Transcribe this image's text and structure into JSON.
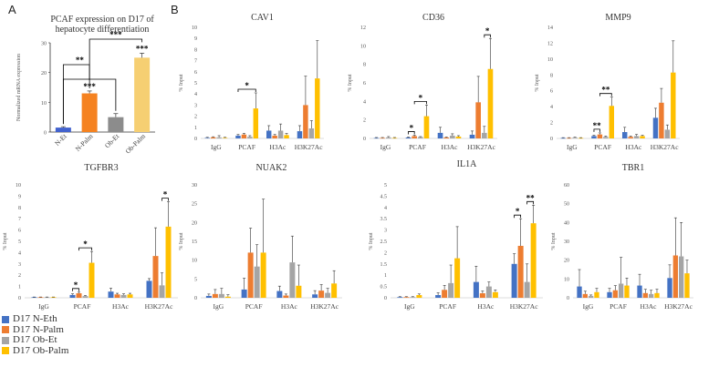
{
  "panel_labels": [
    "A",
    "B"
  ],
  "colors": {
    "N-Eth": "#4472C4",
    "N-Palm": "#ED7D31",
    "Ob-Et": "#A5A5A5",
    "Ob-Palm": "#FFC000",
    "panelA": [
      "#4262CE",
      "#F58220",
      "#8C8C8C",
      "#F6CF72"
    ]
  },
  "legend": [
    {
      "label": "D17 N-Eth",
      "color": "#4472C4"
    },
    {
      "label": "D17 N-Palm",
      "color": "#ED7D31"
    },
    {
      "label": "D17 Ob-Et",
      "color": "#A5A5A5"
    },
    {
      "label": "D17 Ob-Palm",
      "color": "#FFC000"
    }
  ],
  "chart_data": [
    {
      "id": "A",
      "type": "bar",
      "title": "PCAF expression on D17 of hepatocyte differentiation",
      "title_lines": [
        "PCAF expression on D17 of",
        "hepatocyte differentiation"
      ],
      "ylabel": "Normalized mRNA expression",
      "ylim": [
        0,
        30
      ],
      "yticks": [
        0,
        10,
        20,
        30
      ],
      "categories": [
        "N-Et",
        "N-Palm",
        "Ob-Et",
        "Ob-Palm"
      ],
      "values": [
        1.5,
        13,
        5,
        25
      ],
      "errors": [
        0.3,
        0.8,
        1.2,
        1.5
      ],
      "bar_labels": [
        "",
        "***",
        "",
        "***"
      ],
      "brackets": [
        {
          "from": 0,
          "to": 1,
          "label": "**"
        },
        {
          "from": 0,
          "to": 2,
          "label": ""
        },
        {
          "from": 1,
          "to": 3,
          "label": "***"
        }
      ]
    },
    {
      "id": "CAV1",
      "type": "bar",
      "title": "CAV1",
      "ylabel": "% Input",
      "ylim": [
        0,
        10
      ],
      "yticks": [
        0,
        1,
        2,
        3,
        4,
        5,
        6,
        7,
        8,
        9,
        10
      ],
      "categories": [
        "IgG",
        "PCAF",
        "H3Ac",
        "H3K27Ac"
      ],
      "series": [
        {
          "name": "D17 N-Eth",
          "values": [
            0.05,
            0.25,
            0.7,
            0.65
          ],
          "errors": [
            0.05,
            0.1,
            0.45,
            0.5
          ]
        },
        {
          "name": "D17 N-Palm",
          "values": [
            0.1,
            0.35,
            0.25,
            3.0
          ],
          "errors": [
            0.05,
            0.1,
            0.1,
            2.6
          ]
        },
        {
          "name": "D17 Ob-Et",
          "values": [
            0.1,
            0.15,
            0.7,
            0.9
          ],
          "errors": [
            0.15,
            0.1,
            0.6,
            0.7
          ]
        },
        {
          "name": "D17 Ob-Palm",
          "values": [
            0.05,
            2.7,
            0.3,
            5.4
          ],
          "errors": [
            0.05,
            1.4,
            0.15,
            3.4
          ]
        }
      ],
      "sig": [
        {
          "cat": 1,
          "from": 0,
          "to": 3,
          "label": "*"
        }
      ]
    },
    {
      "id": "CD36",
      "type": "bar",
      "title": "CD36",
      "ylabel": "% Input",
      "ylim": [
        0,
        12
      ],
      "yticks": [
        0,
        2,
        4,
        6,
        8,
        10,
        12
      ],
      "categories": [
        "IgG",
        "PCAF",
        "H3Ac",
        "H3K27Ac"
      ],
      "series": [
        {
          "name": "D17 N-Eth",
          "values": [
            0.05,
            0.1,
            0.6,
            0.4
          ],
          "errors": [
            0.05,
            0.05,
            0.6,
            0.4
          ]
        },
        {
          "name": "D17 N-Palm",
          "values": [
            0.05,
            0.25,
            0.1,
            3.9
          ],
          "errors": [
            0.05,
            0.1,
            0.05,
            2.8
          ]
        },
        {
          "name": "D17 Ob-Et",
          "values": [
            0.1,
            0.15,
            0.3,
            0.6
          ],
          "errors": [
            0.1,
            0.05,
            0.2,
            0.7
          ]
        },
        {
          "name": "D17 Ob-Palm",
          "values": [
            0.05,
            2.4,
            0.2,
            7.5
          ],
          "errors": [
            0.05,
            1.2,
            0.1,
            3.3
          ]
        }
      ],
      "sig": [
        {
          "cat": 1,
          "from": 0,
          "to": 1,
          "label": "*"
        },
        {
          "cat": 1,
          "from": 1,
          "to": 3,
          "label": "*"
        },
        {
          "cat": 3,
          "from": 2,
          "to": 3,
          "label": "*"
        }
      ]
    },
    {
      "id": "MMP9",
      "type": "bar",
      "title": "MMP9",
      "ylabel": "% Input",
      "ylim": [
        0,
        14
      ],
      "yticks": [
        0,
        2,
        4,
        6,
        8,
        10,
        12,
        14
      ],
      "categories": [
        "IgG",
        "PCAF",
        "H3Ac",
        "H3K27Ac"
      ],
      "series": [
        {
          "name": "D17 N-Eth",
          "values": [
            0.05,
            0.3,
            0.8,
            2.6
          ],
          "errors": [
            0.05,
            0.1,
            0.6,
            1.2
          ]
        },
        {
          "name": "D17 N-Palm",
          "values": [
            0.05,
            0.5,
            0.2,
            4.5
          ],
          "errors": [
            0.05,
            0.2,
            0.1,
            1.8
          ]
        },
        {
          "name": "D17 Ob-Et",
          "values": [
            0.1,
            0.2,
            0.3,
            1.1
          ],
          "errors": [
            0.05,
            0.1,
            0.2,
            0.6
          ]
        },
        {
          "name": "D17 Ob-Palm",
          "values": [
            0.05,
            4.1,
            0.3,
            8.3
          ],
          "errors": [
            0.05,
            1.1,
            0.1,
            4.0
          ]
        }
      ],
      "sig": [
        {
          "cat": 1,
          "from": 0,
          "to": 1,
          "label": "**"
        },
        {
          "cat": 1,
          "from": 1,
          "to": 3,
          "label": "**"
        }
      ]
    },
    {
      "id": "TGFBR3",
      "type": "bar",
      "title": "TGFBR3",
      "ylabel": "% Input",
      "ylim": [
        0,
        10
      ],
      "yticks": [
        0,
        1,
        2,
        3,
        4,
        5,
        6,
        7,
        8,
        9,
        10
      ],
      "categories": [
        "IgG",
        "PCAF",
        "H3Ac",
        "H3K27Ac"
      ],
      "series": [
        {
          "name": "D17 N-Eth",
          "values": [
            0.05,
            0.25,
            0.55,
            1.5
          ],
          "errors": [
            0.02,
            0.1,
            0.3,
            0.2
          ]
        },
        {
          "name": "D17 N-Palm",
          "values": [
            0.05,
            0.4,
            0.3,
            3.7
          ],
          "errors": [
            0.02,
            0.1,
            0.1,
            2.5
          ]
        },
        {
          "name": "D17 Ob-Et",
          "values": [
            0.05,
            0.15,
            0.25,
            1.1
          ],
          "errors": [
            0.02,
            0.05,
            0.1,
            1.1
          ]
        },
        {
          "name": "D17 Ob-Palm",
          "values": [
            0.05,
            3.1,
            0.3,
            6.3
          ],
          "errors": [
            0.02,
            1.0,
            0.1,
            2.2
          ]
        }
      ],
      "sig": [
        {
          "cat": 1,
          "from": 0,
          "to": 1,
          "label": "*"
        },
        {
          "cat": 1,
          "from": 1,
          "to": 3,
          "label": "*"
        },
        {
          "cat": 3,
          "from": 2,
          "to": 3,
          "label": "*"
        }
      ]
    },
    {
      "id": "NUAK2",
      "type": "bar",
      "title": "NUAK2",
      "ylabel": "% Input",
      "ylim": [
        0,
        30
      ],
      "yticks": [
        0,
        5,
        10,
        15,
        20,
        25,
        30
      ],
      "categories": [
        "IgG",
        "PCAF",
        "H3Ac",
        "H3K27Ac"
      ],
      "series": [
        {
          "name": "D17 N-Eth",
          "values": [
            0.5,
            2.2,
            1.8,
            0.9
          ],
          "errors": [
            0.5,
            3.0,
            1.3,
            1.0
          ]
        },
        {
          "name": "D17 N-Palm",
          "values": [
            1.0,
            12.0,
            0.6,
            1.9
          ],
          "errors": [
            1.2,
            6.5,
            0.4,
            1.6
          ]
        },
        {
          "name": "D17 Ob-Et",
          "values": [
            1.0,
            8.3,
            9.4,
            1.3
          ],
          "errors": [
            1.5,
            5.8,
            7.0,
            1.2
          ]
        },
        {
          "name": "D17 Ob-Palm",
          "values": [
            0.3,
            12.0,
            3.2,
            3.8
          ],
          "errors": [
            0.5,
            14.2,
            5.5,
            3.4
          ]
        }
      ],
      "sig": []
    },
    {
      "id": "IL1A",
      "type": "bar",
      "title": "IL1A",
      "ylabel": "% Input",
      "ylim": [
        0,
        5
      ],
      "yticks": [
        0,
        0.5,
        1,
        1.5,
        2,
        2.5,
        3,
        3.5,
        4,
        4.5,
        5
      ],
      "categories": [
        "IgG",
        "PCAF",
        "H3Ac",
        "H3K27Ac"
      ],
      "series": [
        {
          "name": "D17 N-Eth",
          "values": [
            0.03,
            0.12,
            0.7,
            1.5
          ],
          "errors": [
            0.02,
            0.1,
            0.7,
            0.45
          ]
        },
        {
          "name": "D17 N-Palm",
          "values": [
            0.03,
            0.35,
            0.2,
            2.3
          ],
          "errors": [
            0.02,
            0.2,
            0.1,
            1.2
          ]
        },
        {
          "name": "D17 Ob-Et",
          "values": [
            0.03,
            0.65,
            0.5,
            0.7
          ],
          "errors": [
            0.02,
            0.8,
            0.2,
            0.8
          ]
        },
        {
          "name": "D17 Ob-Palm",
          "values": [
            0.12,
            1.75,
            0.25,
            3.3
          ],
          "errors": [
            0.05,
            1.4,
            0.1,
            0.8
          ]
        }
      ],
      "sig": [
        {
          "cat": 3,
          "from": 0,
          "to": 1,
          "label": "*"
        },
        {
          "cat": 3,
          "from": 2,
          "to": 3,
          "label": "**"
        }
      ]
    },
    {
      "id": "TBR1",
      "type": "bar",
      "title": "TBR1",
      "ylabel": "% Input",
      "ylim": [
        0,
        60
      ],
      "yticks": [
        0,
        10,
        20,
        30,
        40,
        50,
        60
      ],
      "categories": [
        "IgG",
        "PCAF",
        "H3Ac",
        "H3K27Ac"
      ],
      "series": [
        {
          "name": "D17 N-Eth",
          "values": [
            6.0,
            3.0,
            6.5,
            10.5
          ],
          "errors": [
            9.0,
            2.0,
            6.0,
            7.0
          ]
        },
        {
          "name": "D17 N-Palm",
          "values": [
            2.0,
            4.0,
            2.5,
            22.5
          ],
          "errors": [
            1.5,
            2.5,
            2.0,
            20.0
          ]
        },
        {
          "name": "D17 Ob-Et",
          "values": [
            1.0,
            7.5,
            2.0,
            22.0
          ],
          "errors": [
            0.5,
            14.0,
            2.0,
            18.0
          ]
        },
        {
          "name": "D17 Ob-Palm",
          "values": [
            3.0,
            6.5,
            2.5,
            13.0
          ],
          "errors": [
            2.0,
            4.0,
            2.0,
            7.0
          ]
        }
      ],
      "sig": []
    }
  ]
}
